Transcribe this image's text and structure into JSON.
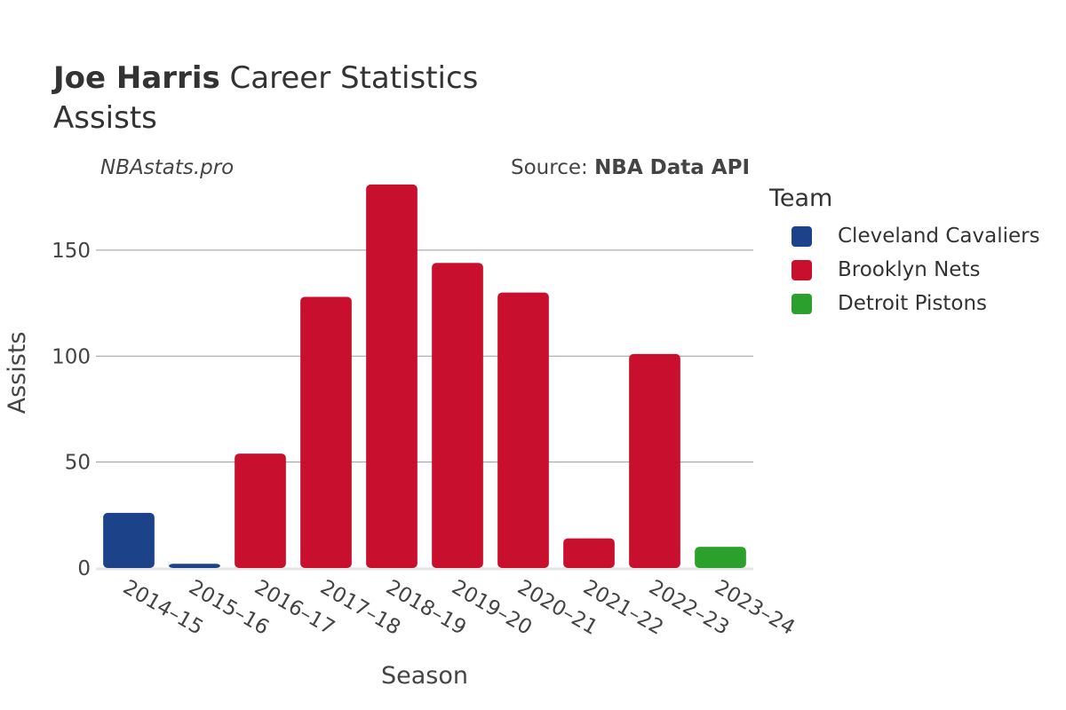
{
  "header": {
    "player": "Joe Harris",
    "title_suffix": "Career Statistics",
    "subtitle": "Assists",
    "watermark": "NBAstats.pro",
    "source_label": "Source:",
    "source_name": "NBA Data API"
  },
  "legend": {
    "title": "Team",
    "items": [
      {
        "label": "Cleveland Cavaliers",
        "color": "#1c4389"
      },
      {
        "label": "Brooklyn Nets",
        "color": "#c8102e"
      },
      {
        "label": "Detroit Pistons",
        "color": "#2ca02c"
      }
    ]
  },
  "chart_data": {
    "type": "bar",
    "xlabel": "Season",
    "ylabel": "Assists",
    "categories": [
      "2014–15",
      "2015–16",
      "2016–17",
      "2017–18",
      "2018–19",
      "2019–20",
      "2020–21",
      "2021–22",
      "2022–23",
      "2023–24"
    ],
    "values": [
      26,
      2,
      54,
      128,
      181,
      144,
      130,
      14,
      101,
      10
    ],
    "teams": [
      "Cleveland Cavaliers",
      "Cleveland Cavaliers",
      "Brooklyn Nets",
      "Brooklyn Nets",
      "Brooklyn Nets",
      "Brooklyn Nets",
      "Brooklyn Nets",
      "Brooklyn Nets",
      "Brooklyn Nets",
      "Detroit Pistons"
    ],
    "colors": [
      "#1c4389",
      "#1c4389",
      "#c8102e",
      "#c8102e",
      "#c8102e",
      "#c8102e",
      "#c8102e",
      "#c8102e",
      "#c8102e",
      "#2ca02c"
    ],
    "yticks": [
      0,
      50,
      100,
      150
    ],
    "ylim": [
      0,
      186
    ],
    "grid": true,
    "legend_position": "right"
  }
}
